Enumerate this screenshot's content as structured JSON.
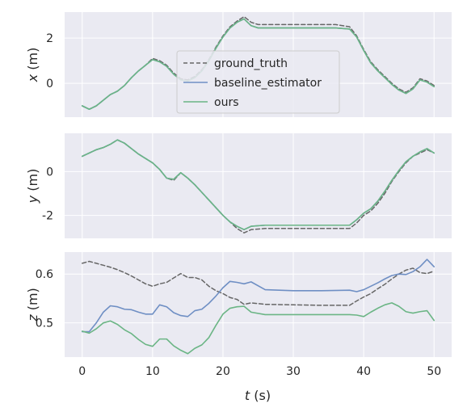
{
  "chart_data": {
    "type": "line",
    "xlabel_main": "t",
    "xlabel_unit": " (s)",
    "xlim": [
      -2.5,
      52.5
    ],
    "xticks": [
      0,
      10,
      20,
      30,
      40,
      50
    ],
    "grid": true,
    "legend": {
      "location": "center",
      "entries": [
        "ground_truth",
        "baseline_estimator",
        "ours"
      ]
    },
    "colors": {
      "ground_truth": "#666666",
      "baseline_estimator": "#6f8fc4",
      "ours": "#6bb585",
      "panel_bg": "#eaeaf2",
      "grid": "#ffffff"
    },
    "panels": [
      {
        "ylabel_main": "x",
        "ylabel_unit": " (m)",
        "ylim": [
          -1.5,
          3.15
        ],
        "yticks": [
          0,
          2
        ],
        "series": [
          {
            "name": "ground_truth",
            "dashed": true,
            "x": [
              0,
              1,
              2,
              3,
              4,
              5,
              6,
              7,
              8,
              9,
              10,
              11,
              12,
              13,
              14,
              15,
              16,
              17,
              18,
              19,
              20,
              21,
              22,
              23,
              24,
              25,
              28,
              32,
              36,
              38,
              39,
              40,
              41,
              42,
              43,
              44,
              45,
              46,
              47,
              48,
              49,
              50
            ],
            "y": [
              -1.0,
              -1.15,
              -1.0,
              -0.75,
              -0.5,
              -0.35,
              -0.1,
              0.25,
              0.55,
              0.8,
              1.1,
              1.0,
              0.8,
              0.45,
              0.2,
              0.15,
              0.3,
              0.6,
              1.05,
              1.6,
              2.1,
              2.5,
              2.75,
              2.95,
              2.7,
              2.6,
              2.6,
              2.6,
              2.6,
              2.5,
              2.1,
              1.5,
              0.95,
              0.6,
              0.3,
              0.0,
              -0.25,
              -0.4,
              -0.2,
              0.2,
              0.1,
              -0.1
            ]
          },
          {
            "name": "baseline_estimator",
            "dashed": false,
            "x": [
              0,
              1,
              2,
              3,
              4,
              5,
              6,
              7,
              8,
              9,
              10,
              11,
              12,
              13,
              14,
              15,
              16,
              17,
              18,
              19,
              20,
              21,
              22,
              23,
              24,
              25,
              28,
              32,
              36,
              38,
              39,
              40,
              41,
              42,
              43,
              44,
              45,
              46,
              47,
              48,
              49,
              50
            ],
            "y": [
              -1.0,
              -1.15,
              -1.0,
              -0.75,
              -0.5,
              -0.35,
              -0.1,
              0.25,
              0.55,
              0.8,
              1.05,
              0.95,
              0.75,
              0.4,
              0.15,
              0.1,
              0.25,
              0.55,
              1.0,
              1.55,
              2.05,
              2.45,
              2.7,
              2.85,
              2.55,
              2.45,
              2.45,
              2.45,
              2.45,
              2.4,
              2.05,
              1.45,
              0.9,
              0.55,
              0.25,
              -0.05,
              -0.3,
              -0.45,
              -0.25,
              0.15,
              0.05,
              -0.15
            ]
          },
          {
            "name": "ours",
            "dashed": false,
            "x": [
              0,
              1,
              2,
              3,
              4,
              5,
              6,
              7,
              8,
              9,
              10,
              11,
              12,
              13,
              14,
              15,
              16,
              17,
              18,
              19,
              20,
              21,
              22,
              23,
              24,
              25,
              28,
              32,
              36,
              38,
              39,
              40,
              41,
              42,
              43,
              44,
              45,
              46,
              47,
              48,
              49,
              50
            ],
            "y": [
              -1.0,
              -1.15,
              -1.0,
              -0.75,
              -0.5,
              -0.35,
              -0.1,
              0.25,
              0.55,
              0.8,
              1.05,
              0.95,
              0.75,
              0.4,
              0.15,
              0.1,
              0.25,
              0.55,
              1.0,
              1.55,
              2.05,
              2.45,
              2.7,
              2.85,
              2.55,
              2.45,
              2.45,
              2.45,
              2.45,
              2.4,
              2.05,
              1.45,
              0.9,
              0.55,
              0.25,
              -0.05,
              -0.3,
              -0.45,
              -0.25,
              0.15,
              0.05,
              -0.15
            ]
          }
        ]
      },
      {
        "ylabel_main": "y",
        "ylabel_unit": " (m)",
        "ylim": [
          -3.05,
          1.75
        ],
        "yticks": [
          -2,
          0
        ],
        "series": [
          {
            "name": "ground_truth",
            "dashed": true,
            "x": [
              0,
              1,
              2,
              3,
              4,
              5,
              6,
              7,
              8,
              9,
              10,
              11,
              12,
              13,
              14,
              15,
              16,
              17,
              18,
              19,
              20,
              21,
              22,
              23,
              24,
              26,
              30,
              34,
              38,
              39,
              40,
              41,
              42,
              43,
              44,
              45,
              46,
              47,
              48,
              49,
              50
            ],
            "y": [
              0.7,
              0.85,
              1.0,
              1.1,
              1.25,
              1.45,
              1.3,
              1.05,
              0.8,
              0.6,
              0.4,
              0.1,
              -0.3,
              -0.4,
              -0.05,
              -0.3,
              -0.6,
              -0.95,
              -1.3,
              -1.65,
              -2.0,
              -2.3,
              -2.6,
              -2.8,
              -2.65,
              -2.6,
              -2.6,
              -2.6,
              -2.6,
              -2.35,
              -2.0,
              -1.8,
              -1.45,
              -1.0,
              -0.45,
              0.0,
              0.4,
              0.7,
              0.85,
              1.0,
              0.85
            ]
          },
          {
            "name": "baseline_estimator",
            "dashed": false,
            "x": [
              0,
              1,
              2,
              3,
              4,
              5,
              6,
              7,
              8,
              9,
              10,
              11,
              12,
              13,
              14,
              15,
              16,
              17,
              18,
              19,
              20,
              21,
              22,
              23,
              24,
              26,
              30,
              34,
              38,
              39,
              40,
              41,
              42,
              43,
              44,
              45,
              46,
              47,
              48,
              49,
              50
            ],
            "y": [
              0.7,
              0.85,
              1.0,
              1.1,
              1.25,
              1.45,
              1.3,
              1.05,
              0.8,
              0.6,
              0.4,
              0.1,
              -0.3,
              -0.35,
              -0.05,
              -0.3,
              -0.6,
              -0.95,
              -1.3,
              -1.65,
              -2.0,
              -2.3,
              -2.5,
              -2.65,
              -2.5,
              -2.45,
              -2.45,
              -2.45,
              -2.45,
              -2.2,
              -1.9,
              -1.7,
              -1.35,
              -0.9,
              -0.4,
              0.05,
              0.45,
              0.7,
              0.9,
              1.05,
              0.85
            ]
          },
          {
            "name": "ours",
            "dashed": false,
            "x": [
              0,
              1,
              2,
              3,
              4,
              5,
              6,
              7,
              8,
              9,
              10,
              11,
              12,
              13,
              14,
              15,
              16,
              17,
              18,
              19,
              20,
              21,
              22,
              23,
              24,
              26,
              30,
              34,
              38,
              39,
              40,
              41,
              42,
              43,
              44,
              45,
              46,
              47,
              48,
              49,
              50
            ],
            "y": [
              0.7,
              0.85,
              1.0,
              1.1,
              1.25,
              1.45,
              1.3,
              1.05,
              0.8,
              0.6,
              0.4,
              0.1,
              -0.3,
              -0.35,
              -0.05,
              -0.3,
              -0.6,
              -0.95,
              -1.3,
              -1.65,
              -2.0,
              -2.3,
              -2.5,
              -2.65,
              -2.5,
              -2.45,
              -2.45,
              -2.45,
              -2.45,
              -2.2,
              -1.9,
              -1.7,
              -1.35,
              -0.9,
              -0.4,
              0.05,
              0.45,
              0.7,
              0.9,
              1.05,
              0.85
            ]
          }
        ]
      },
      {
        "ylabel_main": "z",
        "ylabel_unit": " (m)",
        "ylim": [
          0.43,
          0.645
        ],
        "yticks": [
          0.5,
          0.6
        ],
        "series": [
          {
            "name": "ground_truth",
            "dashed": true,
            "x": [
              0,
              1,
              2,
              3,
              4,
              5,
              6,
              7,
              8,
              9,
              10,
              11,
              12,
              13,
              14,
              15,
              16,
              17,
              18,
              19,
              20,
              21,
              22,
              23,
              24,
              26,
              30,
              34,
              38,
              39,
              40,
              41,
              42,
              43,
              44,
              45,
              46,
              47,
              48,
              49,
              50
            ],
            "y": [
              0.622,
              0.626,
              0.622,
              0.618,
              0.614,
              0.609,
              0.603,
              0.596,
              0.588,
              0.58,
              0.575,
              0.58,
              0.583,
              0.592,
              0.601,
              0.593,
              0.593,
              0.588,
              0.575,
              0.566,
              0.56,
              0.552,
              0.548,
              0.538,
              0.541,
              0.538,
              0.537,
              0.536,
              0.536,
              0.545,
              0.553,
              0.56,
              0.57,
              0.579,
              0.59,
              0.6,
              0.608,
              0.612,
              0.603,
              0.601,
              0.606
            ]
          },
          {
            "name": "baseline_estimator",
            "dashed": false,
            "x": [
              0,
              1,
              2,
              3,
              4,
              5,
              6,
              7,
              8,
              9,
              10,
              11,
              12,
              13,
              14,
              15,
              16,
              17,
              18,
              19,
              20,
              21,
              22,
              23,
              24,
              26,
              30,
              34,
              38,
              39,
              40,
              41,
              42,
              43,
              44,
              45,
              46,
              47,
              48,
              49,
              50
            ],
            "y": [
              0.482,
              0.482,
              0.5,
              0.522,
              0.535,
              0.533,
              0.528,
              0.527,
              0.522,
              0.518,
              0.518,
              0.537,
              0.533,
              0.521,
              0.515,
              0.513,
              0.525,
              0.528,
              0.54,
              0.555,
              0.572,
              0.585,
              0.583,
              0.58,
              0.584,
              0.568,
              0.566,
              0.566,
              0.567,
              0.564,
              0.568,
              0.575,
              0.582,
              0.59,
              0.597,
              0.6,
              0.599,
              0.605,
              0.615,
              0.63,
              0.615
            ]
          },
          {
            "name": "ours",
            "dashed": false,
            "x": [
              0,
              1,
              2,
              3,
              4,
              5,
              6,
              7,
              8,
              9,
              10,
              11,
              12,
              13,
              14,
              15,
              16,
              17,
              18,
              19,
              20,
              21,
              22,
              23,
              24,
              26,
              30,
              34,
              38,
              39,
              40,
              41,
              42,
              43,
              44,
              45,
              46,
              47,
              48,
              49,
              50
            ],
            "y": [
              0.483,
              0.479,
              0.488,
              0.5,
              0.504,
              0.497,
              0.486,
              0.478,
              0.466,
              0.456,
              0.452,
              0.467,
              0.467,
              0.453,
              0.444,
              0.437,
              0.448,
              0.455,
              0.47,
              0.495,
              0.518,
              0.53,
              0.533,
              0.534,
              0.522,
              0.517,
              0.517,
              0.517,
              0.517,
              0.516,
              0.513,
              0.522,
              0.53,
              0.537,
              0.541,
              0.534,
              0.523,
              0.52,
              0.523,
              0.525,
              0.505
            ]
          }
        ]
      }
    ]
  }
}
